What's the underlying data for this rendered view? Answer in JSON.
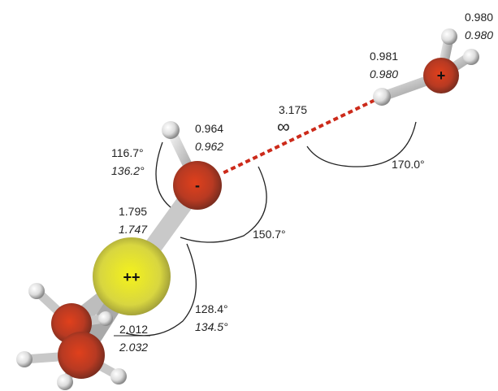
{
  "labels": [
    "0.980",
    "0.980",
    "0.981",
    "0.980",
    "3.175",
    "∞",
    "0.964",
    "0.962",
    "116.7°",
    "136.2°",
    "1.795",
    "1.747",
    "150.7°",
    "170.0°",
    "128.4°",
    "134.5°",
    "2.012",
    "2.032"
  ],
  "atoms": {
    "water_oxygen": "+",
    "anion_oxygen": "-",
    "sulfur": "++"
  }
}
